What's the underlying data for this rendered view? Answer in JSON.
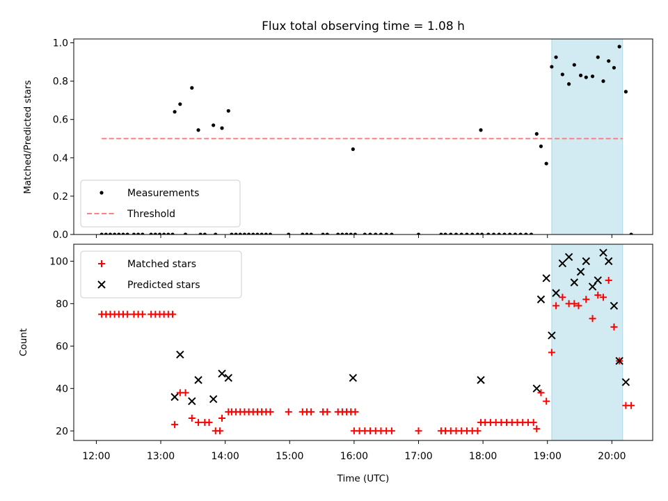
{
  "colors": {
    "measure": "#000000",
    "threshold": "#ff7f7f",
    "matched": "#ff0000",
    "predicted": "#000000",
    "highlight": "#add8e6"
  },
  "chart_data": [
    {
      "type": "scatter",
      "title": "Flux total observing time = 1.08 h",
      "xlabel": "",
      "ylabel": "Matched/Predicted stars",
      "xlim": [
        "11:39",
        "20:38"
      ],
      "ylim": [
        0,
        1.02
      ],
      "yticks": [
        "0.0",
        "0.2",
        "0.4",
        "0.6",
        "0.8",
        "1.0"
      ],
      "legend": {
        "position": "bottom-left",
        "entries": [
          "Measurements",
          "Threshold"
        ]
      },
      "highlight_span": [
        "19:04",
        "20:10"
      ],
      "threshold": {
        "name": "Threshold",
        "y": 0.5,
        "x": [
          "12:05",
          "20:10"
        ]
      },
      "series": [
        {
          "name": "Measurements",
          "points": [
            [
              "13:13",
              0.64
            ],
            [
              "13:18",
              0.68
            ],
            [
              "13:29",
              0.765
            ],
            [
              "13:35",
              0.545
            ],
            [
              "13:49",
              0.57
            ],
            [
              "13:57",
              0.555
            ],
            [
              "14:03",
              0.645
            ],
            [
              "15:59",
              0.445
            ],
            [
              "17:58",
              0.545
            ],
            [
              "18:50",
              0.525
            ],
            [
              "18:54",
              0.46
            ],
            [
              "18:59",
              0.37
            ],
            [
              "19:04",
              0.875
            ],
            [
              "19:08",
              0.925
            ],
            [
              "19:14",
              0.835
            ],
            [
              "19:20",
              0.785
            ],
            [
              "19:25",
              0.885
            ],
            [
              "19:31",
              0.83
            ],
            [
              "19:36",
              0.82
            ],
            [
              "19:42",
              0.825
            ],
            [
              "19:47",
              0.925
            ],
            [
              "19:52",
              0.8
            ],
            [
              "19:57",
              0.905
            ],
            [
              "20:02",
              0.87
            ],
            [
              "20:07",
              0.98
            ],
            [
              "20:13",
              0.745
            ],
            [
              "12:05",
              0
            ],
            [
              "12:09",
              0
            ],
            [
              "12:13",
              0
            ],
            [
              "12:17",
              0
            ],
            [
              "12:21",
              0
            ],
            [
              "12:25",
              0
            ],
            [
              "12:29",
              0
            ],
            [
              "12:35",
              0
            ],
            [
              "12:39",
              0
            ],
            [
              "12:43",
              0
            ],
            [
              "12:51",
              0
            ],
            [
              "12:55",
              0
            ],
            [
              "12:59",
              0
            ],
            [
              "13:03",
              0
            ],
            [
              "13:07",
              0
            ],
            [
              "13:11",
              0
            ],
            [
              "13:23",
              0
            ],
            [
              "13:37",
              0
            ],
            [
              "13:41",
              0
            ],
            [
              "13:51",
              0
            ],
            [
              "14:06",
              0
            ],
            [
              "14:10",
              0
            ],
            [
              "14:14",
              0
            ],
            [
              "14:18",
              0
            ],
            [
              "14:22",
              0
            ],
            [
              "14:26",
              0
            ],
            [
              "14:30",
              0
            ],
            [
              "14:34",
              0
            ],
            [
              "14:38",
              0
            ],
            [
              "14:42",
              0
            ],
            [
              "14:59",
              0
            ],
            [
              "15:12",
              0
            ],
            [
              "15:16",
              0
            ],
            [
              "15:20",
              0
            ],
            [
              "15:31",
              0
            ],
            [
              "15:35",
              0
            ],
            [
              "15:45",
              0
            ],
            [
              "15:49",
              0
            ],
            [
              "15:53",
              0
            ],
            [
              "15:57",
              0
            ],
            [
              "16:01",
              0
            ],
            [
              "16:10",
              0
            ],
            [
              "16:15",
              0
            ],
            [
              "16:20",
              0
            ],
            [
              "16:25",
              0
            ],
            [
              "16:30",
              0
            ],
            [
              "16:35",
              0
            ],
            [
              "17:00",
              0
            ],
            [
              "17:21",
              0
            ],
            [
              "17:25",
              0
            ],
            [
              "17:30",
              0
            ],
            [
              "17:35",
              0
            ],
            [
              "17:40",
              0
            ],
            [
              "17:45",
              0
            ],
            [
              "17:50",
              0
            ],
            [
              "17:55",
              0
            ],
            [
              "17:59",
              0
            ],
            [
              "18:05",
              0
            ],
            [
              "18:10",
              0
            ],
            [
              "18:15",
              0
            ],
            [
              "18:20",
              0
            ],
            [
              "18:25",
              0
            ],
            [
              "18:30",
              0
            ],
            [
              "18:35",
              0
            ],
            [
              "18:40",
              0
            ],
            [
              "18:45",
              0
            ],
            [
              "20:18",
              0
            ]
          ]
        }
      ]
    },
    {
      "type": "scatter",
      "title": "",
      "xlabel": "Time (UTC)",
      "ylabel": "Count",
      "xlim": [
        "11:39",
        "20:38"
      ],
      "ylim": [
        15.5,
        108
      ],
      "xticks": [
        "12:00",
        "13:00",
        "14:00",
        "15:00",
        "16:00",
        "17:00",
        "18:00",
        "19:00",
        "20:00"
      ],
      "yticks": [
        "20",
        "40",
        "60",
        "80",
        "100"
      ],
      "legend": {
        "position": "top-left",
        "entries": [
          "Matched stars",
          "Predicted stars"
        ]
      },
      "highlight_span": [
        "19:04",
        "20:10"
      ],
      "series": [
        {
          "name": "Matched stars",
          "points": [
            [
              "12:05",
              75
            ],
            [
              "12:09",
              75
            ],
            [
              "12:13",
              75
            ],
            [
              "12:17",
              75
            ],
            [
              "12:21",
              75
            ],
            [
              "12:25",
              75
            ],
            [
              "12:29",
              75
            ],
            [
              "12:35",
              75
            ],
            [
              "12:39",
              75
            ],
            [
              "12:43",
              75
            ],
            [
              "12:51",
              75
            ],
            [
              "12:55",
              75
            ],
            [
              "12:59",
              75
            ],
            [
              "13:03",
              75
            ],
            [
              "13:07",
              75
            ],
            [
              "13:11",
              75
            ],
            [
              "13:13",
              23
            ],
            [
              "13:18",
              38
            ],
            [
              "13:23",
              38
            ],
            [
              "13:29",
              26
            ],
            [
              "13:35",
              24
            ],
            [
              "13:41",
              24
            ],
            [
              "13:45",
              24
            ],
            [
              "13:51",
              20
            ],
            [
              "13:55",
              20
            ],
            [
              "13:57",
              26
            ],
            [
              "14:03",
              29
            ],
            [
              "14:06",
              29
            ],
            [
              "14:10",
              29
            ],
            [
              "14:14",
              29
            ],
            [
              "14:18",
              29
            ],
            [
              "14:22",
              29
            ],
            [
              "14:26",
              29
            ],
            [
              "14:30",
              29
            ],
            [
              "14:34",
              29
            ],
            [
              "14:38",
              29
            ],
            [
              "14:42",
              29
            ],
            [
              "14:59",
              29
            ],
            [
              "15:12",
              29
            ],
            [
              "15:16",
              29
            ],
            [
              "15:20",
              29
            ],
            [
              "15:31",
              29
            ],
            [
              "15:35",
              29
            ],
            [
              "15:45",
              29
            ],
            [
              "15:49",
              29
            ],
            [
              "15:53",
              29
            ],
            [
              "15:57",
              29
            ],
            [
              "16:01",
              29
            ],
            [
              "16:00",
              20
            ],
            [
              "16:05",
              20
            ],
            [
              "16:10",
              20
            ],
            [
              "16:15",
              20
            ],
            [
              "16:20",
              20
            ],
            [
              "16:25",
              20
            ],
            [
              "16:30",
              20
            ],
            [
              "16:35",
              20
            ],
            [
              "17:00",
              20
            ],
            [
              "17:21",
              20
            ],
            [
              "17:25",
              20
            ],
            [
              "17:30",
              20
            ],
            [
              "17:35",
              20
            ],
            [
              "17:40",
              20
            ],
            [
              "17:45",
              20
            ],
            [
              "17:50",
              20
            ],
            [
              "17:55",
              20
            ],
            [
              "17:58",
              24
            ],
            [
              "18:02",
              24
            ],
            [
              "18:07",
              24
            ],
            [
              "18:12",
              24
            ],
            [
              "18:17",
              24
            ],
            [
              "18:22",
              24
            ],
            [
              "18:27",
              24
            ],
            [
              "18:32",
              24
            ],
            [
              "18:37",
              24
            ],
            [
              "18:42",
              24
            ],
            [
              "18:47",
              24
            ],
            [
              "18:50",
              21
            ],
            [
              "18:54",
              38
            ],
            [
              "18:59",
              34
            ],
            [
              "19:04",
              57
            ],
            [
              "19:08",
              79
            ],
            [
              "19:14",
              83
            ],
            [
              "19:20",
              80
            ],
            [
              "19:25",
              80
            ],
            [
              "19:29",
              79
            ],
            [
              "19:36",
              82
            ],
            [
              "19:42",
              73
            ],
            [
              "19:47",
              84
            ],
            [
              "19:52",
              83
            ],
            [
              "19:57",
              91
            ],
            [
              "20:02",
              69
            ],
            [
              "20:07",
              53
            ],
            [
              "20:13",
              32
            ],
            [
              "20:18",
              32
            ]
          ]
        },
        {
          "name": "Predicted stars",
          "points": [
            [
              "13:13",
              36
            ],
            [
              "13:18",
              56
            ],
            [
              "13:29",
              34
            ],
            [
              "13:35",
              44
            ],
            [
              "13:49",
              35
            ],
            [
              "13:57",
              47
            ],
            [
              "14:03",
              45
            ],
            [
              "15:59",
              45
            ],
            [
              "17:58",
              44
            ],
            [
              "18:50",
              40
            ],
            [
              "18:54",
              82
            ],
            [
              "18:59",
              92
            ],
            [
              "19:04",
              65
            ],
            [
              "19:08",
              85
            ],
            [
              "19:14",
              99
            ],
            [
              "19:20",
              102
            ],
            [
              "19:25",
              90
            ],
            [
              "19:31",
              95
            ],
            [
              "19:36",
              100
            ],
            [
              "19:42",
              88
            ],
            [
              "19:47",
              91
            ],
            [
              "19:52",
              104
            ],
            [
              "19:57",
              100
            ],
            [
              "20:02",
              79
            ],
            [
              "20:07",
              53
            ],
            [
              "20:13",
              43
            ]
          ]
        }
      ]
    }
  ]
}
